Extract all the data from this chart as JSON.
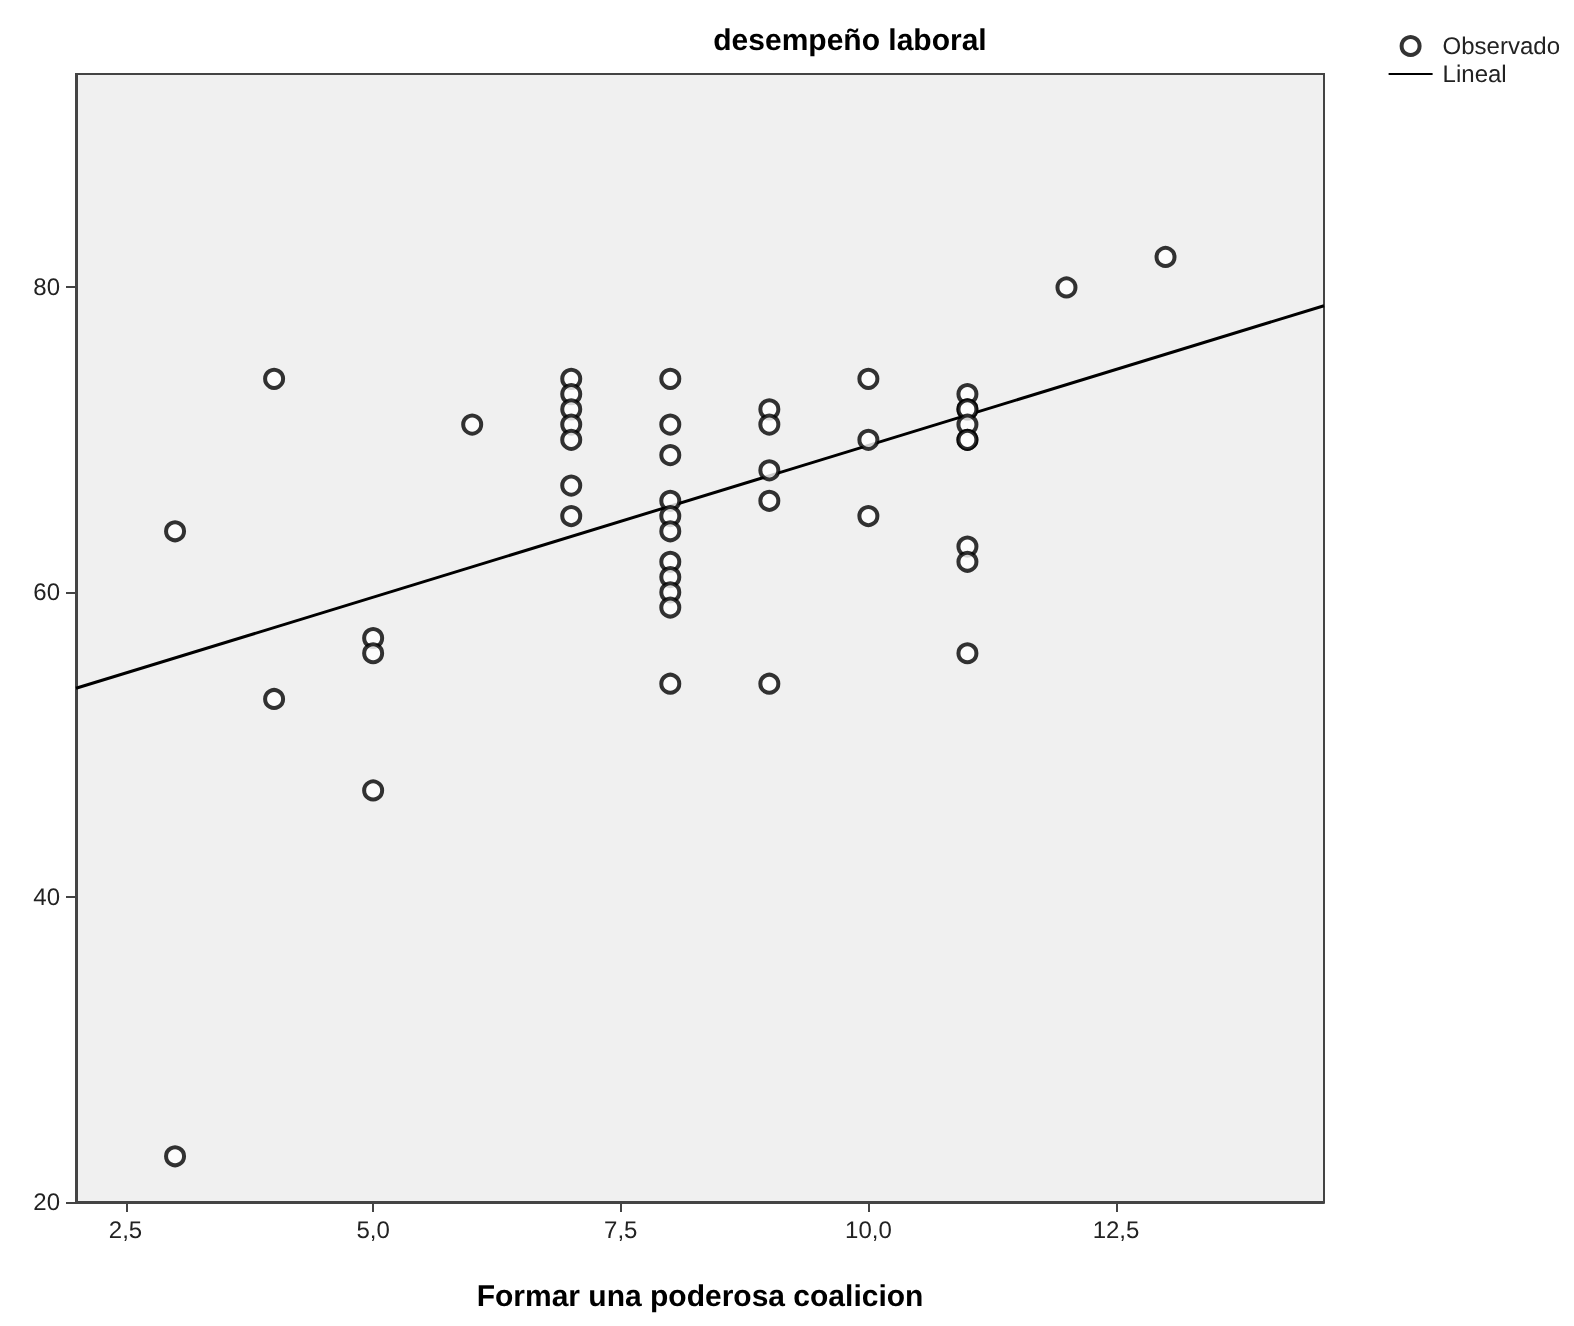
{
  "chart_data": {
    "type": "scatter",
    "title": "desempeño laboral",
    "xlabel": "Formar una poderosa coalicion",
    "xlim": [
      2,
      14.6
    ],
    "xticks": [
      {
        "value": 2.5,
        "label": "2,5"
      },
      {
        "value": 5,
        "label": "5,0"
      },
      {
        "value": 7.5,
        "label": "7,5"
      },
      {
        "value": 10,
        "label": "10,0"
      },
      {
        "value": 12.5,
        "label": "12,5"
      }
    ],
    "ylim": [
      20,
      94
    ],
    "yticks": [
      20,
      40,
      60,
      80
    ],
    "grid": false,
    "legend": "top right",
    "marker": "circle",
    "series": [
      {
        "name": "Observado",
        "color": "#000000",
        "x": [
          3,
          3,
          4,
          4,
          5,
          5,
          5,
          6,
          7,
          7,
          7,
          7,
          7,
          7,
          7,
          8,
          8,
          8,
          8,
          8,
          8,
          8,
          8,
          8,
          8,
          8,
          9,
          9,
          9,
          9,
          9,
          10,
          10,
          10,
          11,
          11,
          11,
          11,
          11,
          11,
          11,
          11,
          11,
          12,
          13
        ],
        "values": [
          64,
          23,
          74,
          53,
          57,
          56,
          47,
          71,
          74,
          73,
          72,
          71,
          70,
          67,
          65,
          74,
          71,
          69,
          66,
          65,
          64,
          62,
          61,
          60,
          59,
          54,
          72,
          71,
          68,
          66,
          54,
          74,
          70,
          65,
          73,
          72,
          72,
          71,
          70,
          70,
          63,
          62,
          56,
          80,
          82
        ]
      },
      {
        "name": "Lineal",
        "type": "line",
        "color": "#000000",
        "line_style": "solid",
        "marker": "none",
        "x": [
          2,
          14.6
        ],
        "values": [
          53.7,
          78.8
        ]
      }
    ]
  }
}
